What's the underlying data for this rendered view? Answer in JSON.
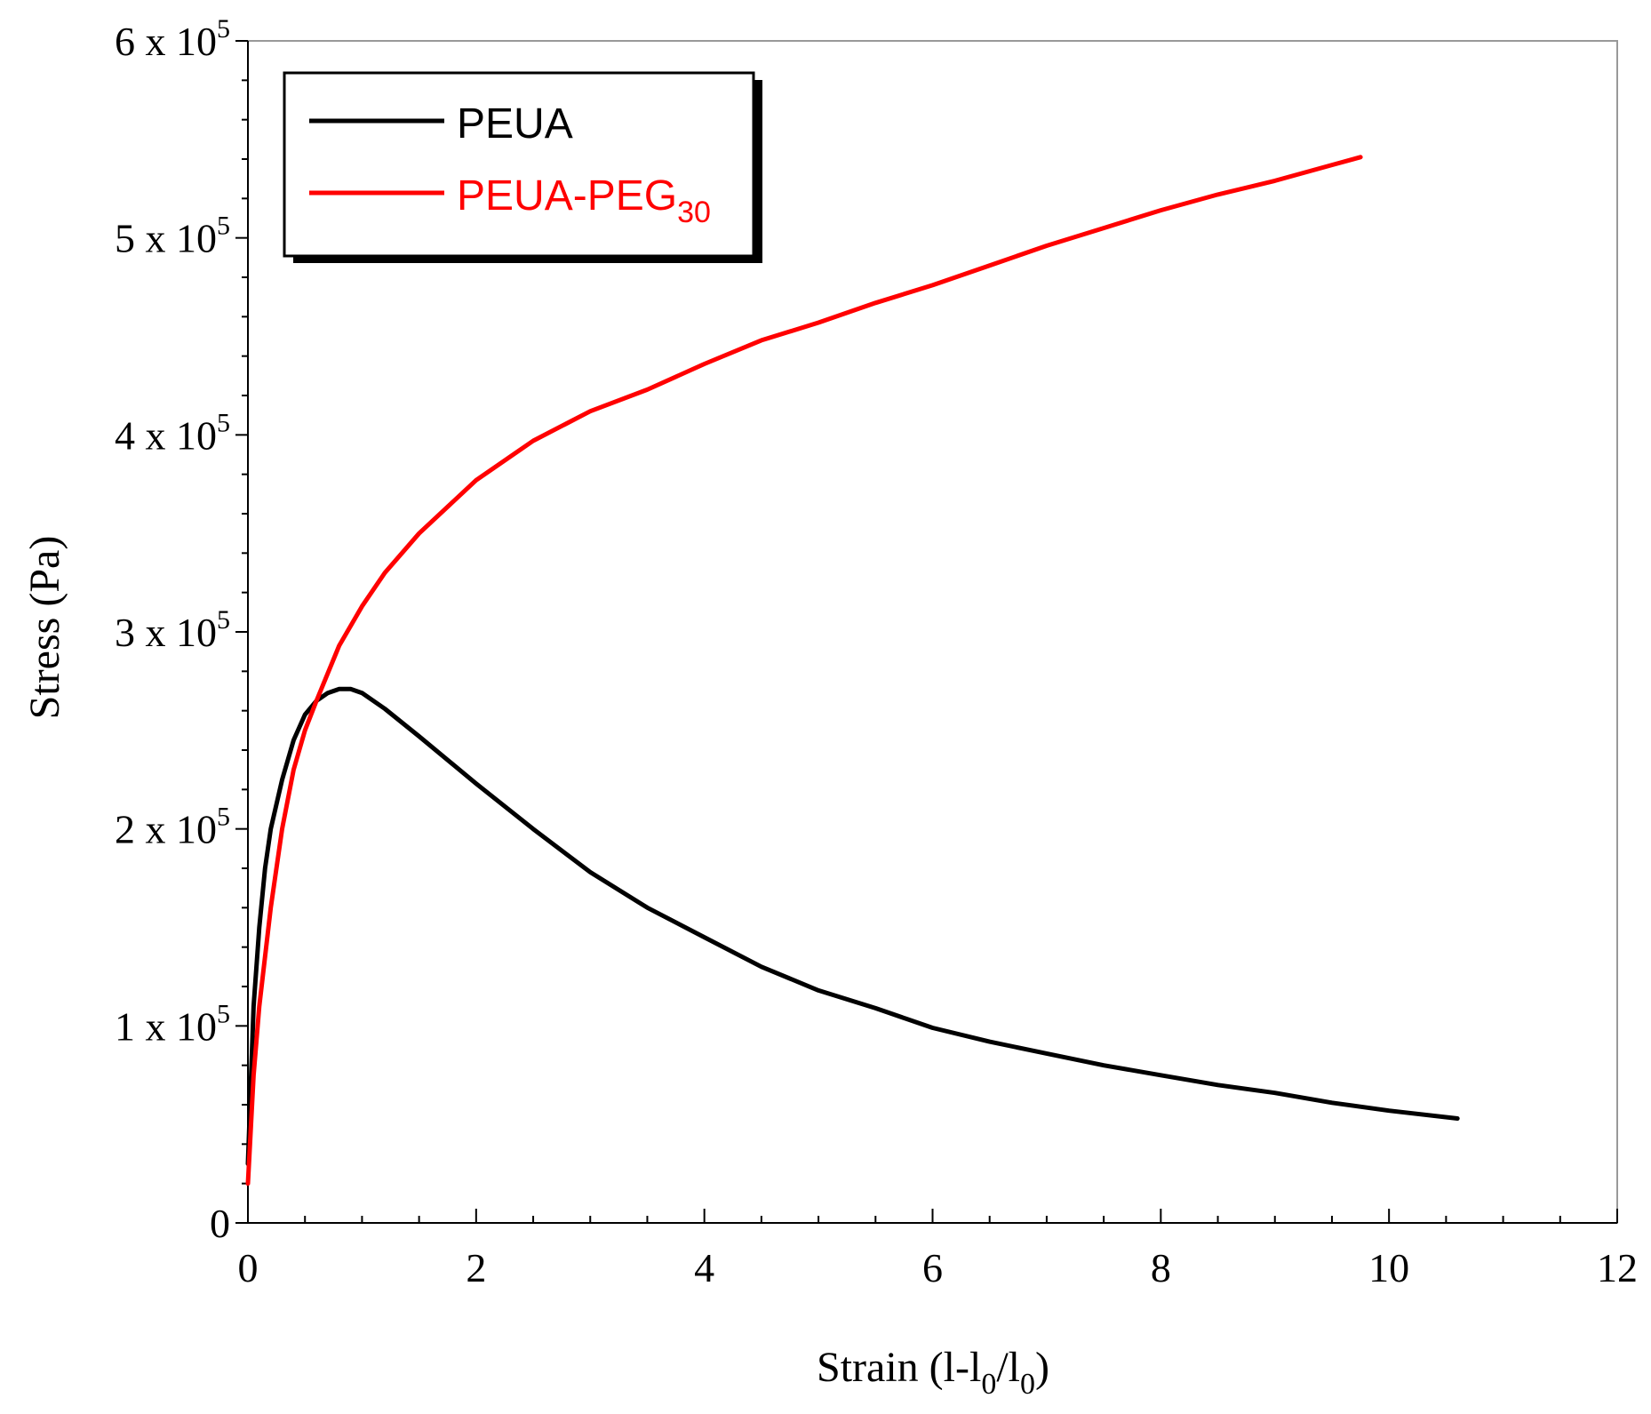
{
  "chart_data": {
    "type": "line",
    "xlabel": {
      "main": "Strain (l-l",
      "sub1": "0",
      "mid": "/l",
      "sub2": "0",
      "end": ")"
    },
    "ylabel": "Stress (Pa)",
    "xlim": [
      0,
      12
    ],
    "ylim": [
      0,
      600000
    ],
    "x_ticks": [
      0,
      2,
      4,
      6,
      8,
      10,
      12
    ],
    "x_tick_labels": [
      "0",
      "2",
      "4",
      "6",
      "8",
      "10",
      "12"
    ],
    "y_ticks": [
      0,
      100000,
      200000,
      300000,
      400000,
      500000,
      600000
    ],
    "y_tick_labels": [
      {
        "base": "0",
        "exp": ""
      },
      {
        "base": "1 x 10",
        "exp": "5"
      },
      {
        "base": "2 x 10",
        "exp": "5"
      },
      {
        "base": "3 x 10",
        "exp": "5"
      },
      {
        "base": "4 x 10",
        "exp": "5"
      },
      {
        "base": "5 x 10",
        "exp": "5"
      },
      {
        "base": "6 x 10",
        "exp": "5"
      }
    ],
    "legend_position": "top-left",
    "series": [
      {
        "name": "PEUA",
        "label_main": "PEUA",
        "label_sub": "",
        "color": "#000000",
        "x": [
          0,
          0.05,
          0.1,
          0.15,
          0.2,
          0.3,
          0.4,
          0.5,
          0.6,
          0.7,
          0.8,
          0.9,
          1.0,
          1.2,
          1.5,
          2.0,
          2.5,
          3.0,
          3.5,
          4.0,
          4.5,
          5.0,
          5.5,
          6.0,
          6.5,
          7.0,
          7.5,
          8.0,
          8.5,
          9.0,
          9.5,
          10.0,
          10.6
        ],
        "y": [
          30000,
          110000,
          150000,
          180000,
          200000,
          225000,
          245000,
          258000,
          265000,
          269000,
          271000,
          271000,
          269000,
          261000,
          247000,
          223000,
          200000,
          178000,
          160000,
          145000,
          130000,
          118000,
          109000,
          99000,
          92000,
          86000,
          80000,
          75000,
          70000,
          66000,
          61000,
          57000,
          53000
        ]
      },
      {
        "name": "PEUA-PEG30",
        "label_main": "PEUA-PEG",
        "label_sub": "30",
        "color": "#ff0000",
        "x": [
          0,
          0.05,
          0.1,
          0.2,
          0.3,
          0.4,
          0.5,
          0.6,
          0.8,
          1.0,
          1.2,
          1.5,
          2.0,
          2.5,
          3.0,
          3.5,
          4.0,
          4.5,
          5.0,
          5.5,
          6.0,
          6.5,
          7.0,
          7.5,
          8.0,
          8.5,
          9.0,
          9.5,
          9.75
        ],
        "y": [
          20000,
          75000,
          110000,
          160000,
          200000,
          230000,
          250000,
          265000,
          293000,
          313000,
          330000,
          350000,
          377000,
          397000,
          412000,
          423000,
          436000,
          448000,
          457000,
          467000,
          476000,
          486000,
          496000,
          505000,
          514000,
          522000,
          529000,
          537000,
          541000
        ]
      }
    ]
  }
}
